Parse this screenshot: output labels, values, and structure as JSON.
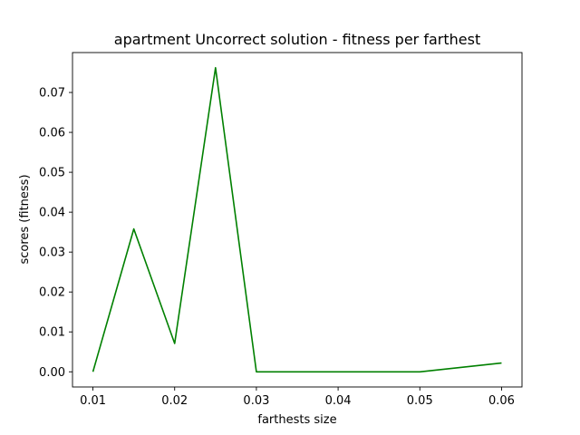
{
  "chart_data": {
    "type": "line",
    "title": "apartment Uncorrect solution - fitness per farthest",
    "xlabel": "farthests size",
    "ylabel": "scores (fitness)",
    "x": [
      0.01,
      0.015,
      0.02,
      0.025,
      0.03,
      0.035,
      0.04,
      0.045,
      0.05,
      0.055,
      0.06
    ],
    "series": [
      {
        "color": "#008000",
        "values": [
          0.0,
          0.0358,
          0.0071,
          0.0762,
          0.0,
          0.0,
          0.0,
          0.0,
          0.0,
          0.0011,
          0.0022
        ]
      }
    ],
    "xlim": [
      0.0075,
      0.0625
    ],
    "ylim": [
      -0.0038,
      0.08
    ],
    "xticks": [
      0.01,
      0.02,
      0.03,
      0.04,
      0.05,
      0.06
    ],
    "xtick_labels": [
      "0.01",
      "0.02",
      "0.03",
      "0.04",
      "0.05",
      "0.06"
    ],
    "yticks": [
      0.0,
      0.01,
      0.02,
      0.03,
      0.04,
      0.05,
      0.06,
      0.07
    ],
    "ytick_labels": [
      "0.00",
      "0.01",
      "0.02",
      "0.03",
      "0.04",
      "0.05",
      "0.06",
      "0.07"
    ],
    "grid": false,
    "legend": false
  }
}
